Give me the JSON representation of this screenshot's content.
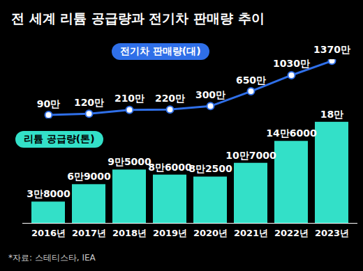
{
  "chart_data": {
    "type": "bar",
    "title": "전 세계 리튬 공급량과 전기차 판매량 추이",
    "source": "*자료: 스테티스타, IEA",
    "categories": [
      "2016년",
      "2017년",
      "2018년",
      "2019년",
      "2020년",
      "2021년",
      "2022년",
      "2023년"
    ],
    "series": [
      {
        "name": "리튬 공급량(톤)",
        "type": "bar",
        "color": "#33e0c8",
        "values": [
          38000,
          69000,
          95000,
          86000,
          82500,
          107000,
          146000,
          180000
        ],
        "value_labels": [
          "3만8000",
          "6만9000",
          "9만5000",
          "8만6000",
          "8만2500",
          "10만7000",
          "14만6000",
          "18만"
        ]
      },
      {
        "name": "전기차 판매량(대)",
        "type": "line",
        "axis": "y2",
        "color": "#2f6fe8",
        "marker": "circle",
        "values": [
          900000,
          1200000,
          2100000,
          2200000,
          3000000,
          6500000,
          10300000,
          13700000
        ],
        "value_labels": [
          "90만",
          "120만",
          "210만",
          "220만",
          "300만",
          "650만",
          "1030만",
          "1370만"
        ]
      }
    ],
    "ylim": [
      0,
      310000
    ],
    "y2lim": [
      0,
      14000000
    ],
    "data_labels": true,
    "tick_labels": "x",
    "grid": false
  }
}
